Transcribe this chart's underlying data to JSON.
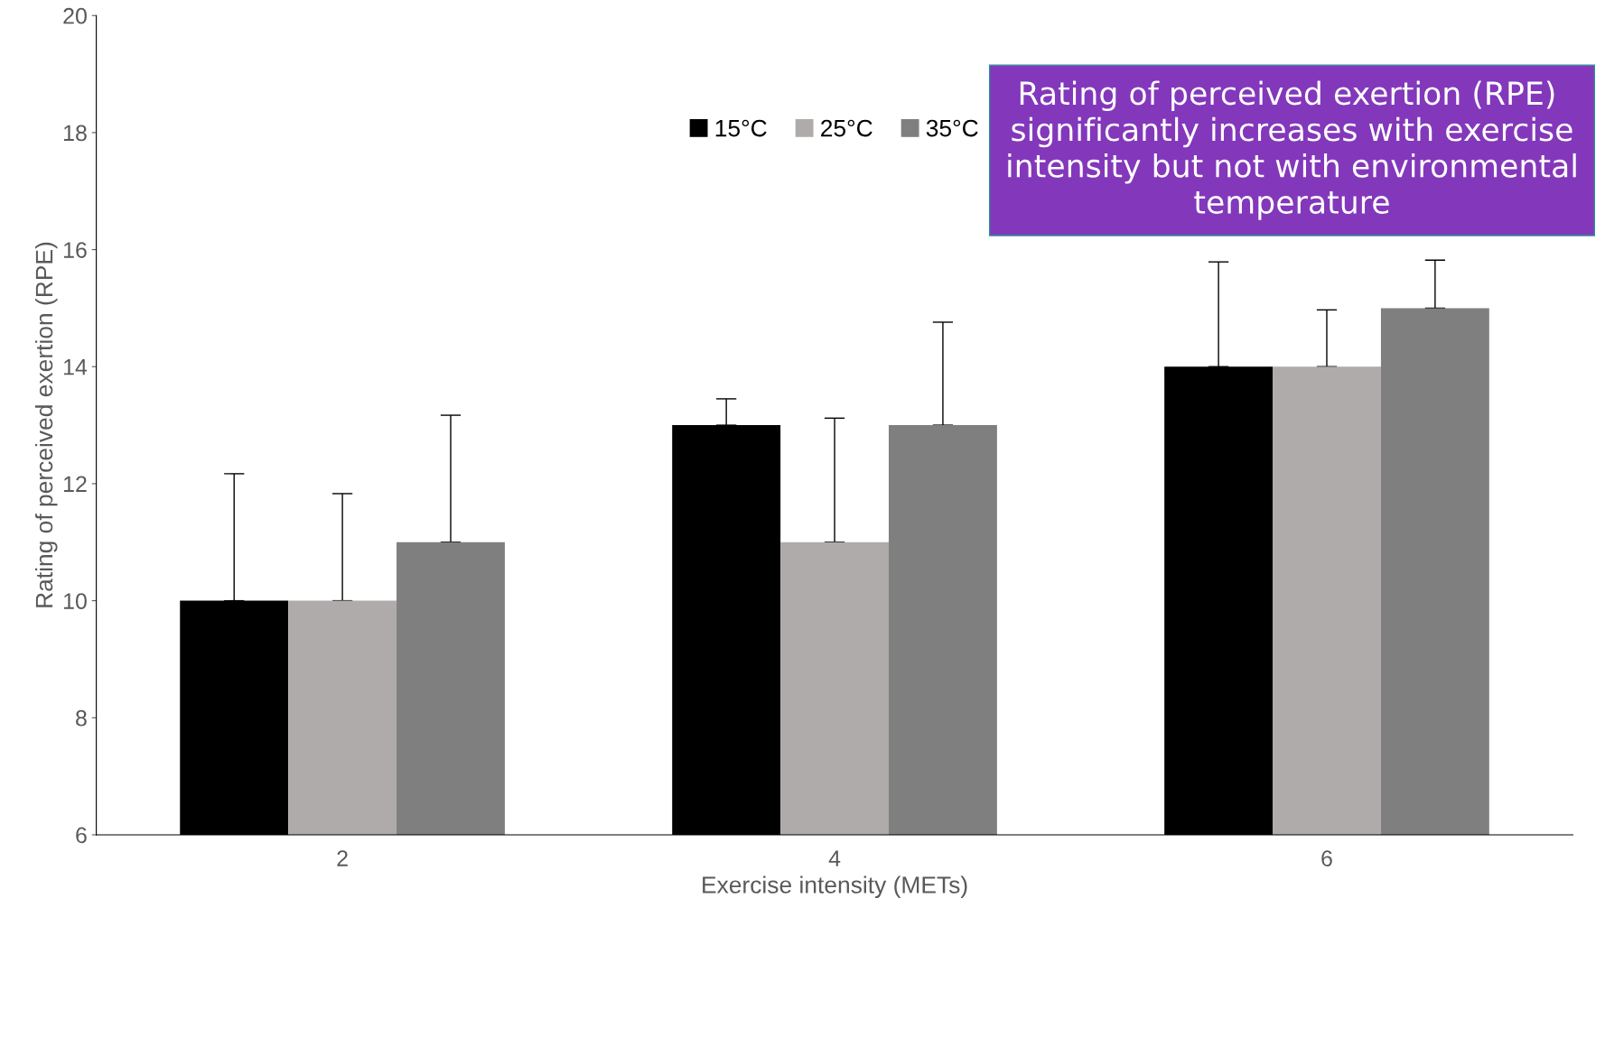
{
  "chart_data": {
    "type": "bar",
    "xlabel": "Exercise intensity (METs)",
    "ylabel": "Rating of perceived exertion (RPE)",
    "categories": [
      "2",
      "4",
      "6"
    ],
    "series": [
      {
        "name": "15°C",
        "color": "#000000",
        "values": [
          10,
          13,
          14
        ],
        "errors": [
          [
            10,
            12.17
          ],
          [
            13,
            13.45
          ],
          [
            14,
            15.79
          ]
        ]
      },
      {
        "name": "25°C",
        "color": "#afabab",
        "values": [
          10,
          11,
          14
        ],
        "errors": [
          [
            10,
            11.83
          ],
          [
            11,
            13.12
          ],
          [
            14,
            14.97
          ]
        ]
      },
      {
        "name": "35°C",
        "color": "#7f7f7f",
        "values": [
          11,
          13,
          15
        ],
        "errors": [
          [
            11,
            13.17
          ],
          [
            13,
            14.76
          ],
          [
            15,
            15.82
          ]
        ]
      }
    ],
    "ylim": [
      6,
      20
    ],
    "yticks": [
      6,
      8,
      10,
      12,
      14,
      16,
      18,
      20
    ],
    "grid": false,
    "legend": "top",
    "annotations": [
      "Rating of perceived exertion (RPE)  significantly increases with exercise intensity but not with environmental temperature"
    ]
  }
}
